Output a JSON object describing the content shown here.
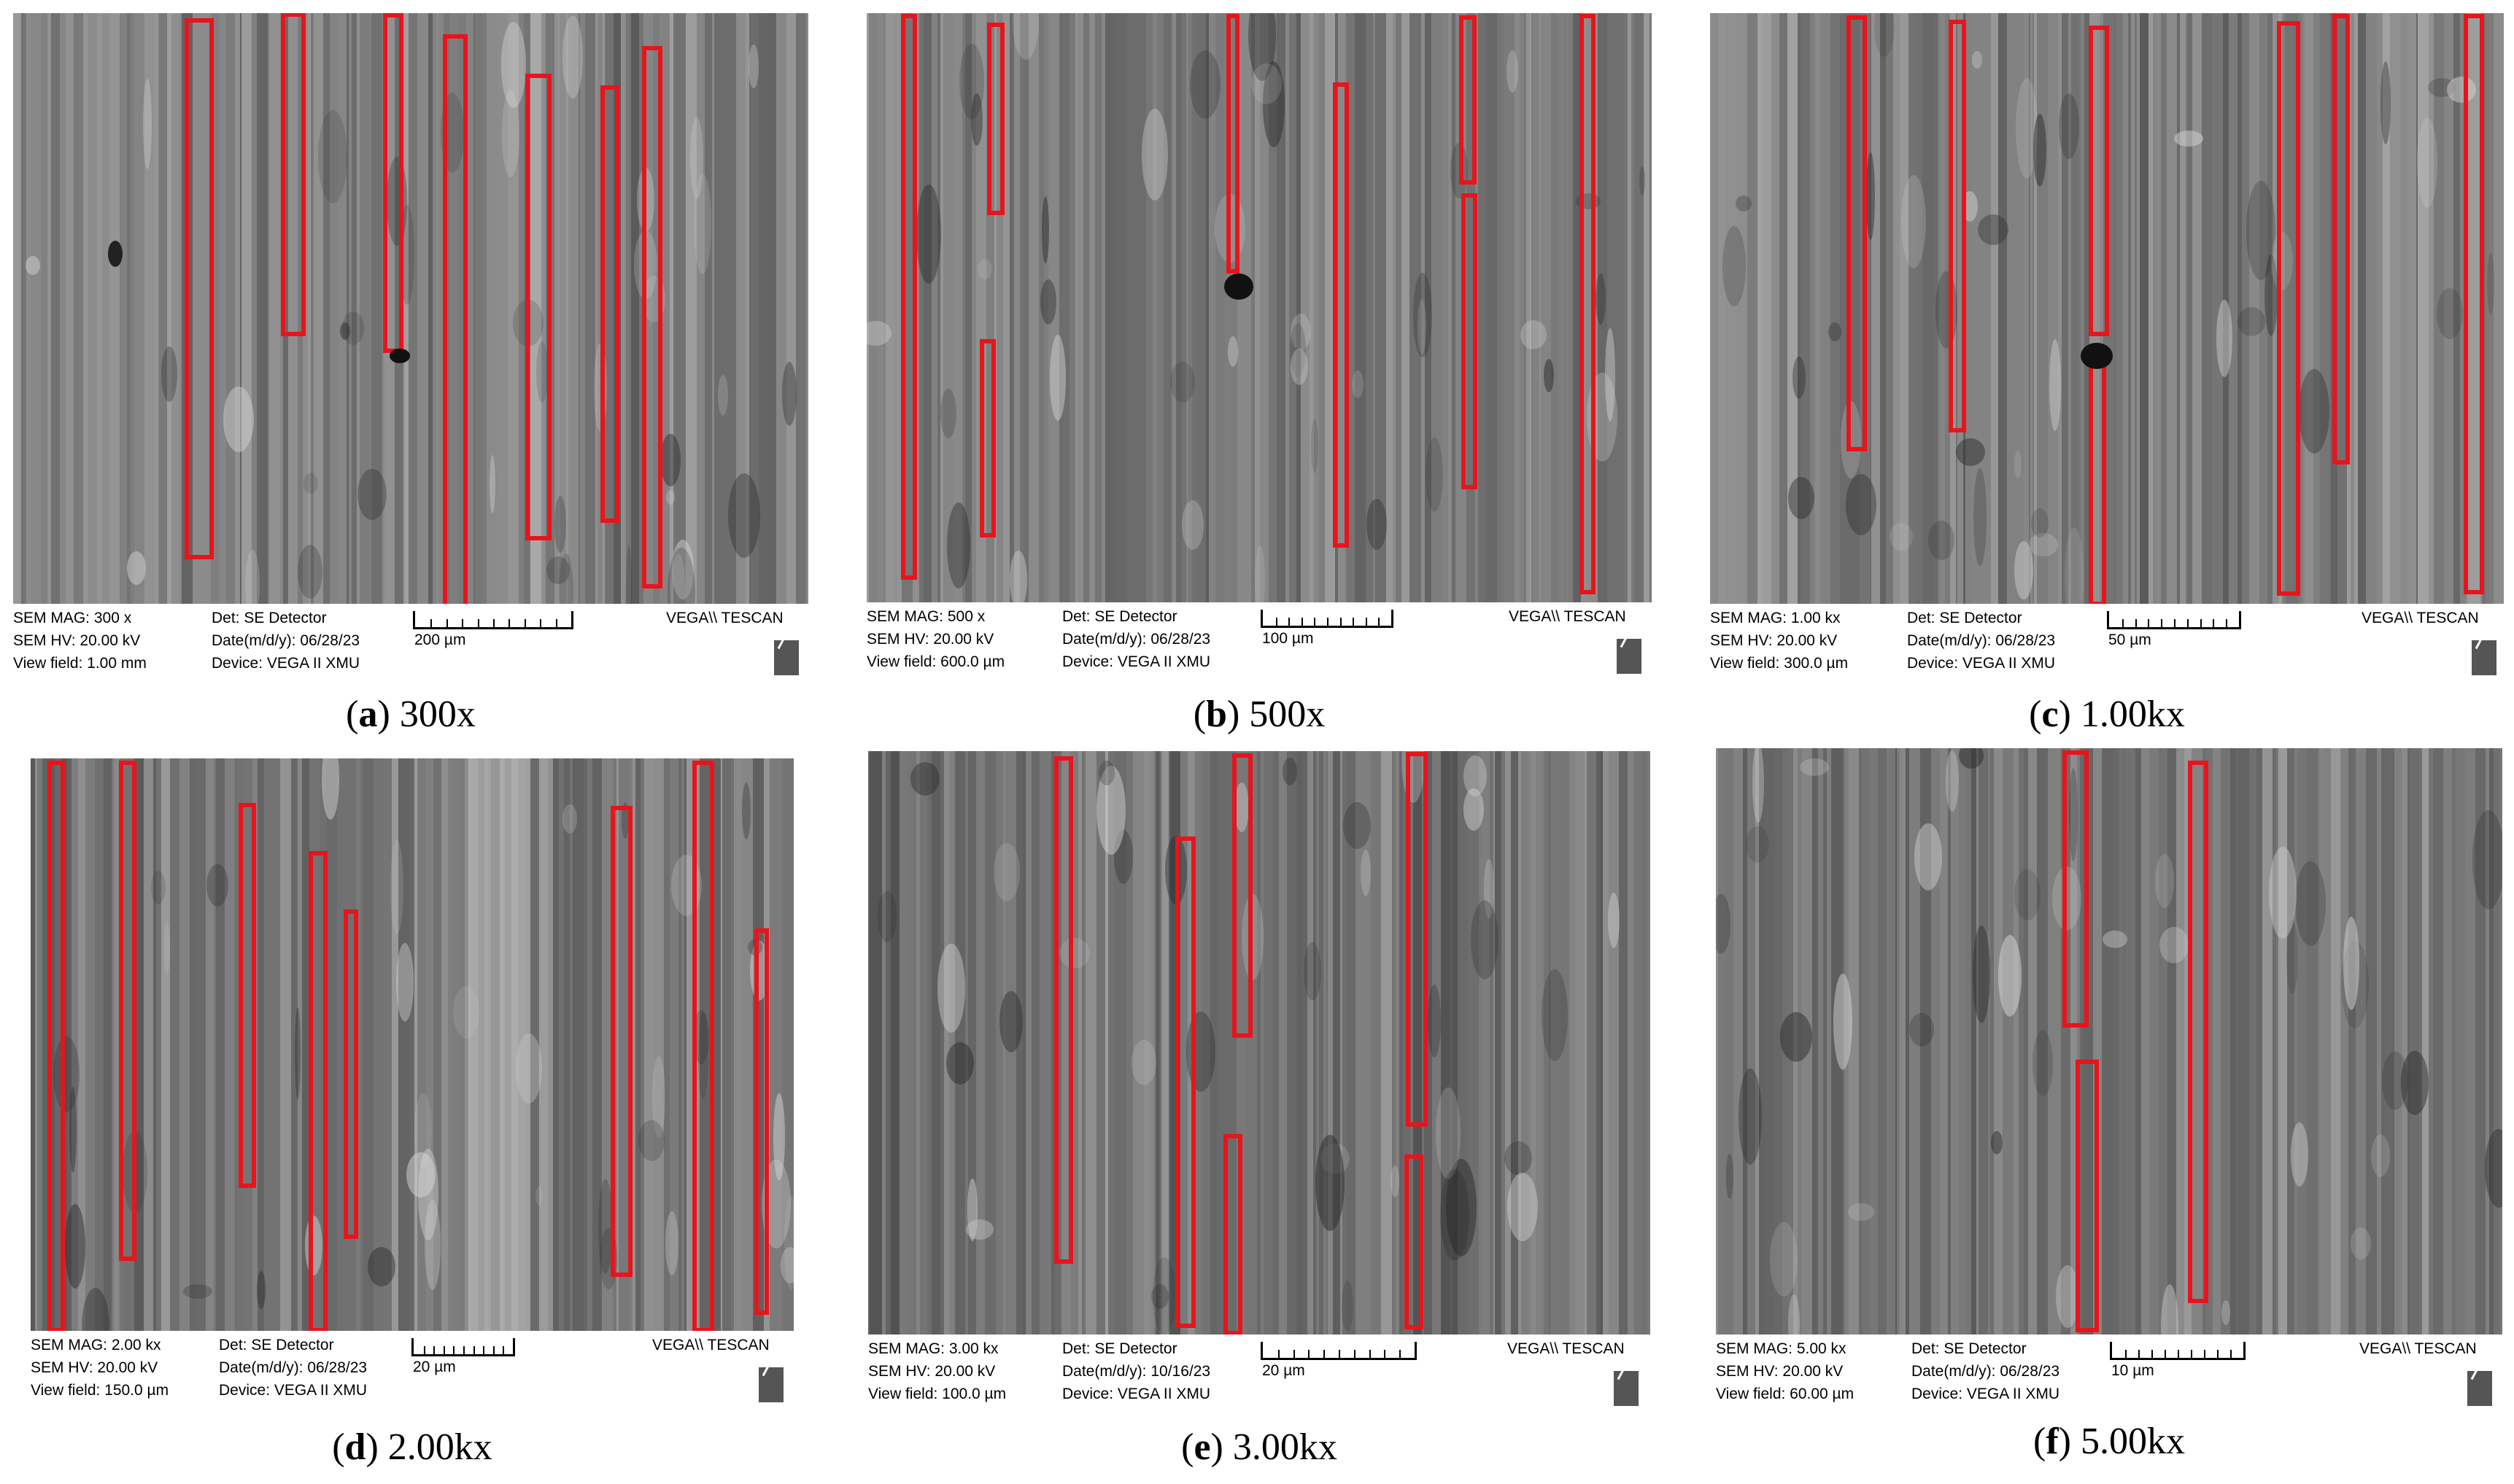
{
  "figure": {
    "panels": [
      {
        "id": "a",
        "caption_letter": "a",
        "caption_text": "300x",
        "sem_mag": "SEM MAG: 300 x",
        "sem_hv": "SEM HV: 20.00 kV",
        "view_field": "View field: 1.00 mm",
        "detector": "Det: SE Detector",
        "date": "Date(m/d/y): 06/28/23",
        "device": "Device: VEGA II XMU",
        "scale_label": "200 µm",
        "brand": "VEGA\\\\ TESCAN",
        "tone": "#8a8a8a",
        "annotation_color": "#e8141c"
      },
      {
        "id": "b",
        "caption_letter": "b",
        "caption_text": "500x",
        "sem_mag": "SEM MAG: 500 x",
        "sem_hv": "SEM HV: 20.00 kV",
        "view_field": "View field: 600.0 µm",
        "detector": "Det: SE Detector",
        "date": "Date(m/d/y): 06/28/23",
        "device": "Device: VEGA II XMU",
        "scale_label": "100 µm",
        "brand": "VEGA\\\\ TESCAN",
        "tone": "#7c7c7c",
        "annotation_color": "#e8141c"
      },
      {
        "id": "c",
        "caption_letter": "c",
        "caption_text": "1.00kx",
        "sem_mag": "SEM MAG: 1.00 kx",
        "sem_hv": "SEM HV: 20.00 kV",
        "view_field": "View field: 300.0 µm",
        "detector": "Det: SE Detector",
        "date": "Date(m/d/y): 06/28/23",
        "device": "Device: VEGA II XMU",
        "scale_label": "50 µm",
        "brand": "VEGA\\\\ TESCAN",
        "tone": "#858585",
        "annotation_color": "#e8141c"
      },
      {
        "id": "d",
        "caption_letter": "d",
        "caption_text": "2.00kx",
        "sem_mag": "SEM MAG: 2.00 kx",
        "sem_hv": "SEM HV: 20.00 kV",
        "view_field": "View field: 150.0 µm",
        "detector": "Det: SE Detector",
        "date": "Date(m/d/y): 06/28/23",
        "device": "Device: VEGA II XMU",
        "scale_label": "20 µm",
        "brand": "VEGA\\\\ TESCAN",
        "tone": "#6f6f6f",
        "annotation_color": "#e8141c"
      },
      {
        "id": "e",
        "caption_letter": "e",
        "caption_text": "3.00kx",
        "sem_mag": "SEM MAG: 3.00 kx",
        "sem_hv": "SEM HV: 20.00 kV",
        "view_field": "View field: 100.0 µm",
        "detector": "Det: SE Detector",
        "date": "Date(m/d/y): 10/16/23",
        "device": "Device: VEGA II XMU",
        "scale_label": "20 µm",
        "brand": "VEGA\\\\ TESCAN",
        "tone": "#6a6a6a",
        "annotation_color": "#e8141c"
      },
      {
        "id": "f",
        "caption_letter": "f",
        "caption_text": "5.00kx",
        "sem_mag": "SEM MAG: 5.00 kx",
        "sem_hv": "SEM HV: 20.00 kV",
        "view_field": "View field: 60.00 µm",
        "detector": "Det: SE Detector",
        "date": "Date(m/d/y): 06/28/23",
        "device": "Device: VEGA II XMU",
        "scale_label": "10 µm",
        "brand": "VEGA\\\\ TESCAN",
        "tone": "#707070",
        "annotation_color": "#e8141c"
      }
    ]
  }
}
